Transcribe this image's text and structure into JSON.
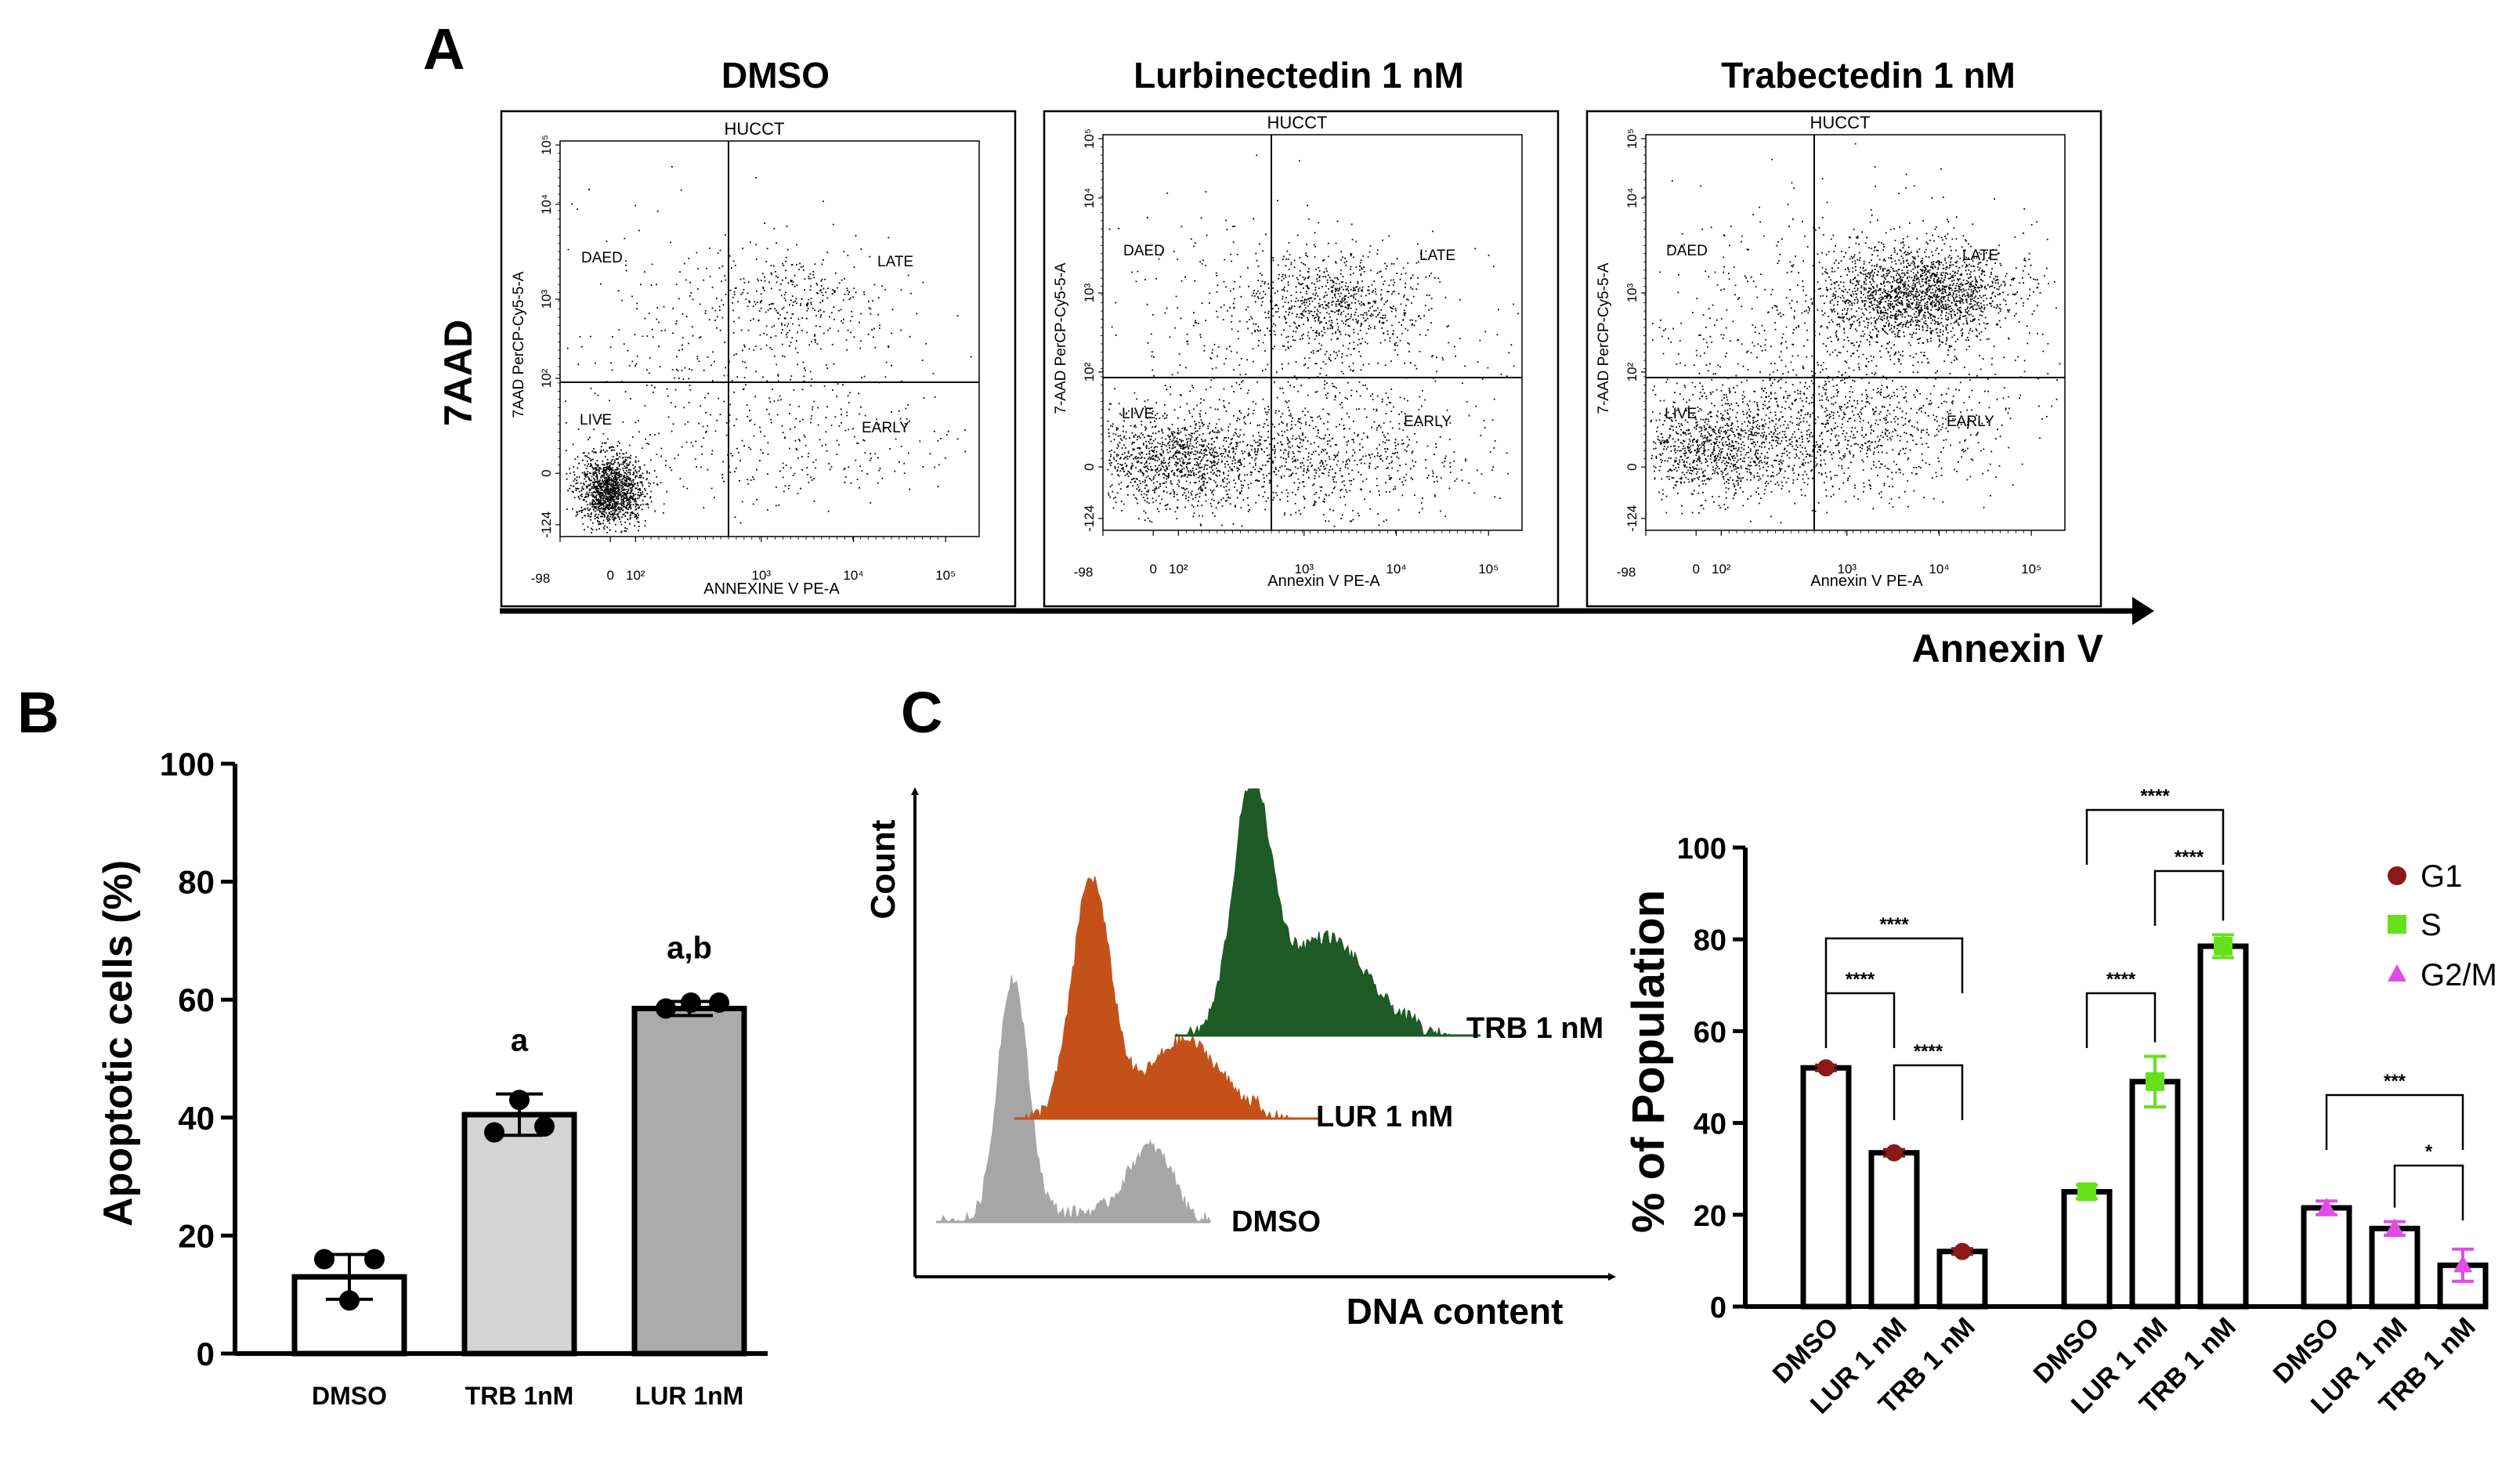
{
  "panel_labels": {
    "a": "A",
    "b": "B",
    "c": "C"
  },
  "panel_a": {
    "y_axis_label": "7AAD",
    "x_axis_label": "Annexin V",
    "plots": [
      {
        "title": "DMSO",
        "sample": "HUCCT",
        "y_label": "7AAD PerCP-Cy5-5-A",
        "x_label": "ANNEXINE V PE-A",
        "q_dead": "DAED",
        "q_late": "LATE",
        "q_live": "LIVE",
        "q_early": "EARLY"
      },
      {
        "title": "Lurbinectedin 1 nM",
        "sample": "HUCCT",
        "y_label": "7-AAD PerCP-Cy5-5-A",
        "x_label": "Annexin V PE-A",
        "q_dead": "DAED",
        "q_late": "LATE",
        "q_live": "LIVE",
        "q_early": "EARLY"
      },
      {
        "title": "Trabectedin 1 nM",
        "sample": "HUCCT",
        "y_label": "7-AAD PerCP-Cy5-5-A",
        "x_label": "Annexin V PE-A",
        "q_dead": "DAED",
        "q_late": "LATE",
        "q_live": "LIVE",
        "q_early": "EARLY"
      }
    ],
    "y_ticks": [
      "-124",
      "0",
      "10²",
      "10³",
      "10⁴",
      "10⁵"
    ],
    "x_ticks": [
      "-98",
      "0",
      "10²",
      "10³",
      "10⁴",
      "10⁵"
    ]
  },
  "panel_c_hist": {
    "y_label": "Count",
    "x_label": "DNA content",
    "series": [
      {
        "name": "DMSO",
        "color": "#a6a6a6"
      },
      {
        "name": "LUR 1 nM",
        "color": "#c5511a"
      },
      {
        "name": "TRB 1 nM",
        "color": "#1e5b27"
      }
    ]
  },
  "chart_data": [
    {
      "type": "bar",
      "title": "",
      "xlabel": "",
      "ylabel": "Apoptotic cells (%)",
      "ylim": [
        0,
        100
      ],
      "yticks": [
        0,
        20,
        40,
        60,
        80,
        100
      ],
      "categories": [
        "DMSO",
        "TRB 1nM",
        "LUR 1nM"
      ],
      "values": [
        13,
        40.5,
        58.5
      ],
      "errors": [
        3.8,
        3.5,
        1.2
      ],
      "points": [
        [
          16,
          16,
          9
        ],
        [
          37.5,
          38.5,
          43
        ],
        [
          58.5,
          59.5,
          59.5
        ]
      ],
      "annotations": [
        "",
        "a",
        "a,b"
      ],
      "bar_colors": [
        "#ffffff",
        "#d4d4d4",
        "#ababab"
      ]
    },
    {
      "type": "bar",
      "title": "",
      "xlabel": "",
      "ylabel": "% of Population",
      "ylim": [
        0,
        100
      ],
      "yticks": [
        0,
        20,
        40,
        60,
        80,
        100
      ],
      "groups": [
        "G1",
        "S",
        "G2/M"
      ],
      "categories": [
        "DMSO",
        "LUR 1 nM",
        "TRB 1 nM"
      ],
      "series": [
        {
          "name": "G1",
          "color": "#8b1a1a",
          "marker": "circle",
          "values": [
            52,
            33.5,
            12
          ],
          "errors": [
            0.6,
            0.7,
            0.6
          ]
        },
        {
          "name": "S",
          "color": "#66e01a",
          "marker": "square",
          "values": [
            25,
            49,
            78.5
          ],
          "errors": [
            1.5,
            5.5,
            2.5
          ]
        },
        {
          "name": "G2/M",
          "color": "#e14ce8",
          "marker": "triangle",
          "values": [
            21.5,
            17,
            9
          ],
          "errors": [
            1.5,
            1.5,
            3.5
          ]
        }
      ],
      "significance": [
        {
          "group": "G1",
          "from": 0,
          "to": 1,
          "label": "****"
        },
        {
          "group": "G1",
          "from": 0,
          "to": 2,
          "label": "****"
        },
        {
          "group": "G1",
          "from": 1,
          "to": 2,
          "label": "****"
        },
        {
          "group": "S",
          "from": 0,
          "to": 1,
          "label": "****"
        },
        {
          "group": "S",
          "from": 0,
          "to": 2,
          "label": "****"
        },
        {
          "group": "S",
          "from": 1,
          "to": 2,
          "label": "****"
        },
        {
          "group": "G2/M",
          "from": 0,
          "to": 2,
          "label": "***"
        },
        {
          "group": "G2/M",
          "from": 1,
          "to": 2,
          "label": "*"
        }
      ],
      "legend": [
        "G1",
        "S",
        "G2/M"
      ],
      "legend_position": "top-right"
    }
  ]
}
